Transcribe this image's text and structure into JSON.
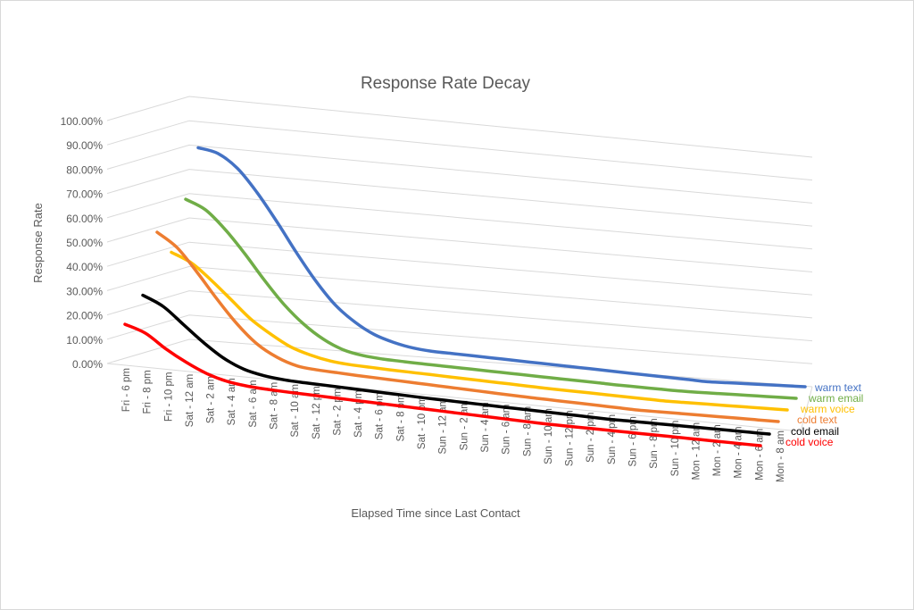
{
  "chart_data": {
    "type": "line",
    "title": "Response Rate Decay",
    "xlabel": "Elapsed Time since Last Contact",
    "ylabel": "Response Rate",
    "y_ticks": [
      "0.00%",
      "10.00%",
      "20.00%",
      "30.00%",
      "40.00%",
      "50.00%",
      "60.00%",
      "70.00%",
      "80.00%",
      "90.00%",
      "100.00%"
    ],
    "ylim": [
      0,
      100
    ],
    "categories": [
      "Fri - 6 pm",
      "Fri - 8 pm",
      "Fri - 10 pm",
      "Sat - 12 am",
      "Sat - 2 am",
      "Sat - 4 am",
      "Sat - 6 am",
      "Sat - 8 am",
      "Sat - 10 am",
      "Sat - 12 pm",
      "Sat - 2 pm",
      "Sat - 4 pm",
      "Sat - 6 pm",
      "Sat - 8 pm",
      "Sat - 10 pm",
      "Sun - 12 am",
      "Sun - 2 am",
      "Sun - 4 am",
      "Sun - 6 am",
      "Sun - 8 am",
      "Sun - 10 am",
      "Sun - 12 pm",
      "Sun - 2 pm",
      "Sun - 4 pm",
      "Sun - 6 pm",
      "Sun - 8 pm",
      "Sun - 10 pm",
      "Mon - 12 am",
      "Mon - 2 am",
      "Mon - 4 am",
      "Mon - 6 am",
      "Mon - 8 am"
    ],
    "grid": true,
    "series": [
      {
        "name": "warm text",
        "color": "#4472c4",
        "values": [
          90,
          88,
          82,
          72,
          60,
          47,
          35,
          25,
          18,
          13,
          10,
          8,
          7,
          6.5,
          6,
          5.5,
          5,
          4.5,
          4,
          3.5,
          3,
          2.5,
          2,
          1.5,
          1,
          0.5,
          0,
          0,
          0,
          0,
          0,
          0
        ]
      },
      {
        "name": "warm email",
        "color": "#70ad47",
        "values": [
          70,
          66,
          58,
          48,
          37,
          27,
          19,
          13,
          9,
          7,
          6,
          5.5,
          5,
          4.6,
          4.2,
          3.8,
          3.4,
          3,
          2.6,
          2.2,
          1.8,
          1.4,
          1,
          0.7,
          0.4,
          0.1,
          0,
          0,
          0,
          0,
          0,
          0
        ]
      },
      {
        "name": "warm voice",
        "color": "#ffc000",
        "values": [
          50,
          46,
          39,
          31,
          23,
          17,
          12,
          9,
          7,
          6,
          5.5,
          5,
          4.6,
          4.2,
          3.8,
          3.4,
          3,
          2.6,
          2.2,
          1.8,
          1.5,
          1.2,
          0.9,
          0.6,
          0.3,
          0,
          0,
          0,
          0,
          0,
          0,
          0
        ]
      },
      {
        "name": "cold text",
        "color": "#ed7d31",
        "values": [
          60,
          54,
          44,
          33,
          23,
          15,
          10,
          7,
          6,
          5.5,
          5,
          4.6,
          4.2,
          3.8,
          3.4,
          3,
          2.6,
          2.2,
          1.8,
          1.5,
          1.2,
          0.9,
          0.6,
          0.3,
          0,
          0,
          0,
          0,
          0,
          0,
          0,
          0
        ]
      },
      {
        "name": "cold email",
        "color": "#000000",
        "values": [
          35,
          31,
          24,
          17,
          11,
          7,
          5,
          4,
          3.6,
          3.3,
          3,
          2.7,
          2.4,
          2.1,
          1.8,
          1.6,
          1.4,
          1.2,
          1,
          0.8,
          0.6,
          0.4,
          0.2,
          0,
          0,
          0,
          0,
          0,
          0,
          0,
          0,
          0
        ]
      },
      {
        "name": "cold voice",
        "color": "#ff0000",
        "values": [
          25,
          22,
          16,
          11,
          7,
          4.5,
          3.3,
          2.8,
          2.5,
          2.3,
          2.1,
          1.9,
          1.7,
          1.5,
          1.3,
          1.1,
          0.9,
          0.7,
          0.5,
          0.3,
          0.1,
          0,
          0,
          0,
          0,
          0,
          0,
          0,
          0,
          0,
          0,
          0
        ]
      }
    ]
  }
}
